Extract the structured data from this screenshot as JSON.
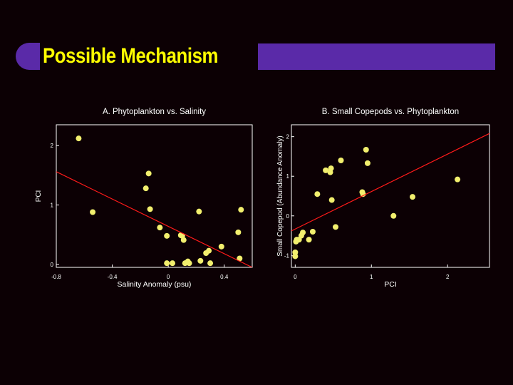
{
  "slide": {
    "title": "Possible Mechanism"
  },
  "colors": {
    "background": "#0c0004",
    "title_bar": "#5a2aa8",
    "title_text": "#ffff00",
    "points": "#f2ef6e",
    "fit_line": "#ff1a1a",
    "axes": "#ffffff"
  },
  "chart_data": [
    {
      "type": "scatter",
      "title": "A. Phytoplankton vs. Salinity",
      "xlabel": "Salinity Anomaly (psu)",
      "ylabel": "PCI",
      "xlim": [
        -0.8,
        0.6
      ],
      "ylim": [
        -0.05,
        2.35
      ],
      "xticks": [
        -0.8,
        -0.4,
        0,
        0.4
      ],
      "xtick_labels": [
        "-0.8",
        "-0.4",
        "0",
        "0.4"
      ],
      "yticks": [
        0,
        1,
        2
      ],
      "ytick_labels": [
        "0",
        "1",
        "2"
      ],
      "points": [
        [
          -0.64,
          2.12
        ],
        [
          -0.54,
          0.88
        ],
        [
          -0.16,
          1.28
        ],
        [
          -0.14,
          1.53
        ],
        [
          -0.13,
          0.93
        ],
        [
          -0.06,
          0.62
        ],
        [
          -0.01,
          0.48
        ],
        [
          -0.01,
          0.02
        ],
        [
          0.03,
          0.02
        ],
        [
          0.09,
          0.49
        ],
        [
          0.1,
          0.48
        ],
        [
          0.11,
          0.41
        ],
        [
          0.12,
          0.02
        ],
        [
          0.14,
          0.05
        ],
        [
          0.15,
          0.02
        ],
        [
          0.22,
          0.89
        ],
        [
          0.23,
          0.06
        ],
        [
          0.27,
          0.19
        ],
        [
          0.29,
          0.23
        ],
        [
          0.3,
          0.02
        ],
        [
          0.38,
          0.3
        ],
        [
          0.5,
          0.54
        ],
        [
          0.51,
          0.1
        ],
        [
          0.52,
          0.92
        ]
      ],
      "fit_line": [
        [
          -0.8,
          1.56
        ],
        [
          0.6,
          -0.05
        ]
      ],
      "grid": false
    },
    {
      "type": "scatter",
      "title": "B. Small Copepods vs. Phytoplankton",
      "xlabel": "PCI",
      "ylabel": "Small Copepod (Abundance Anomaly)",
      "xlim": [
        -0.05,
        2.55
      ],
      "ylim": [
        -1.3,
        2.3
      ],
      "xticks": [
        0,
        1,
        2
      ],
      "xtick_labels": [
        "0",
        "1",
        "2"
      ],
      "yticks": [
        -1,
        0,
        1,
        2
      ],
      "ytick_labels": [
        "-1",
        "0",
        "1",
        "2"
      ],
      "points": [
        [
          0.0,
          -1.02
        ],
        [
          0.0,
          -0.92
        ],
        [
          0.01,
          -0.65
        ],
        [
          0.02,
          -0.6
        ],
        [
          0.05,
          -0.6
        ],
        [
          0.08,
          -0.5
        ],
        [
          0.1,
          -0.42
        ],
        [
          0.18,
          -0.6
        ],
        [
          0.23,
          -0.4
        ],
        [
          0.29,
          0.55
        ],
        [
          0.4,
          1.15
        ],
        [
          0.46,
          1.1
        ],
        [
          0.47,
          1.2
        ],
        [
          0.48,
          0.4
        ],
        [
          0.53,
          -0.28
        ],
        [
          0.6,
          1.4
        ],
        [
          0.88,
          0.6
        ],
        [
          0.89,
          0.55
        ],
        [
          0.93,
          1.67
        ],
        [
          0.95,
          1.33
        ],
        [
          1.29,
          0.0
        ],
        [
          1.54,
          0.48
        ],
        [
          2.13,
          0.92
        ]
      ],
      "fit_line": [
        [
          -0.05,
          -0.38
        ],
        [
          2.55,
          2.08
        ]
      ],
      "grid": false
    }
  ]
}
